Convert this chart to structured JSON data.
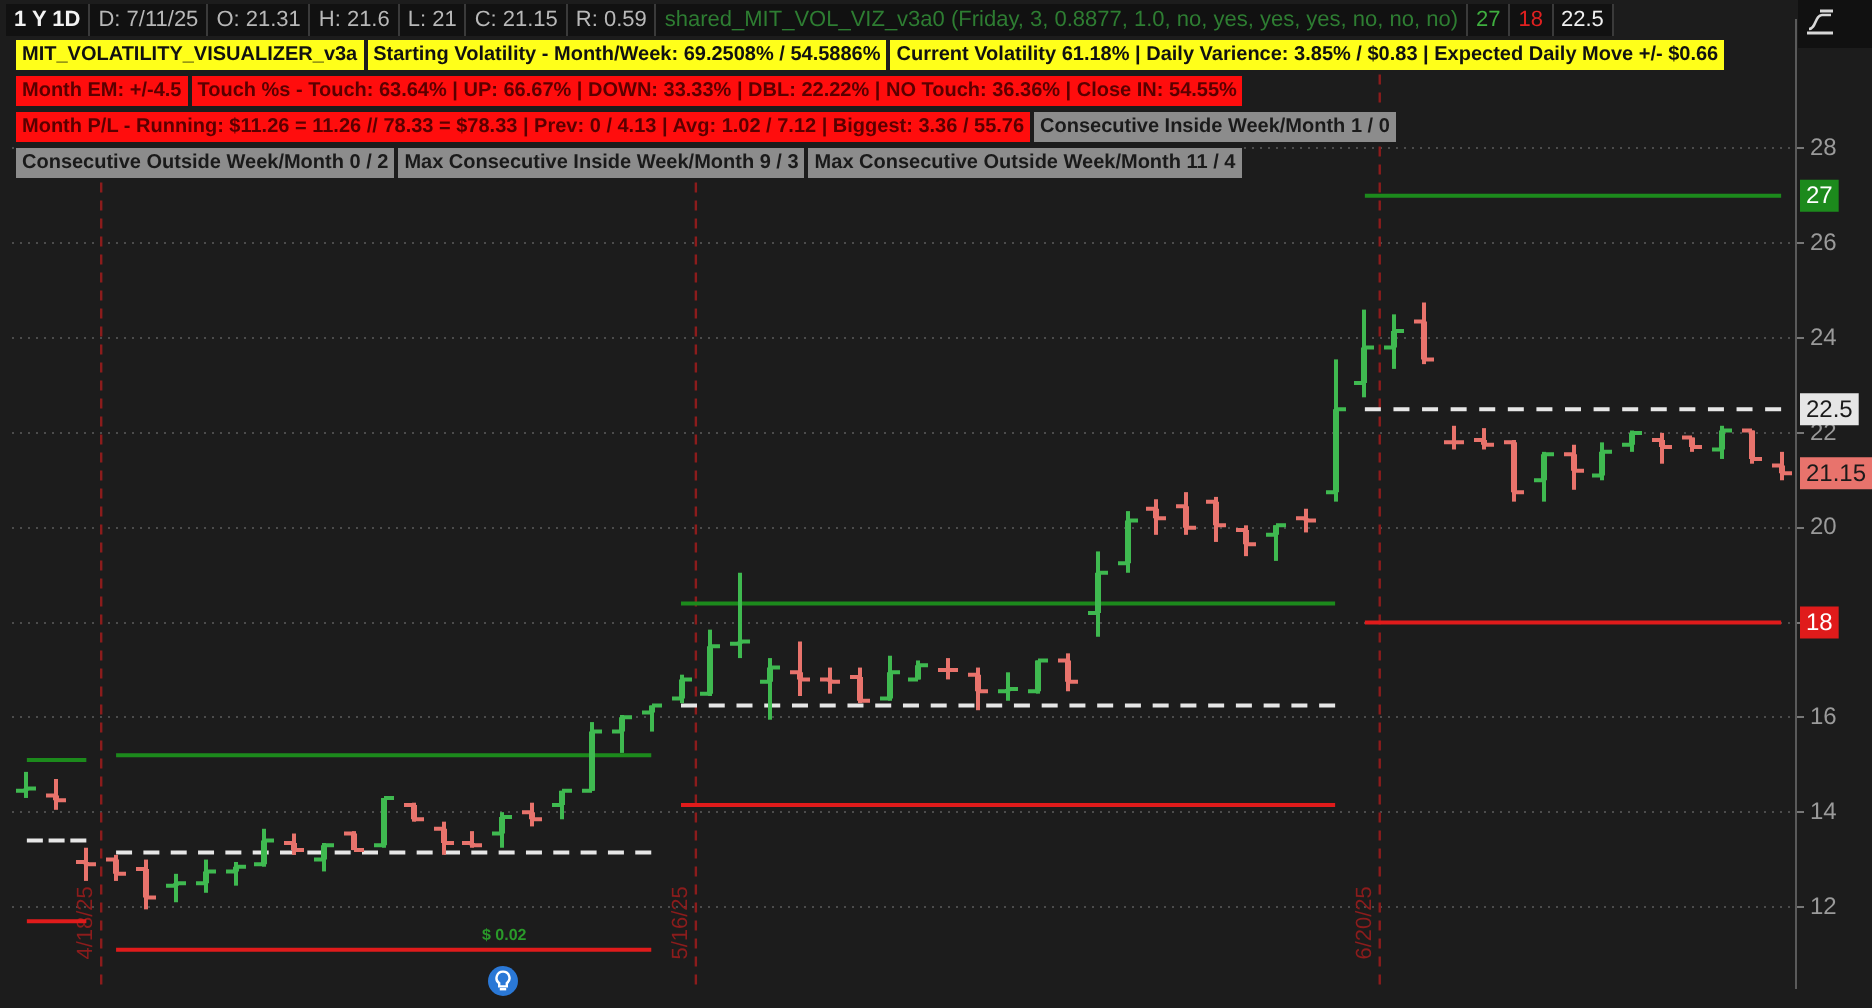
{
  "chart_data": {
    "type": "candlestick",
    "title": "1 Y 1D",
    "annotations": [
      "D: 7/11/25",
      "O: 21.31",
      "H: 21.6",
      "L: 21",
      "C: 21.15",
      "R: 0.59",
      "shared_MIT_VOL_VIZ_v3a0 (Friday, 3, 0.8877, 1.0, no, yes, yes, yes, no, no, no)",
      "27",
      "18",
      "22.5",
      "MIT_VOLATILITY_VISUALIZER_v3a",
      "Starting Volatility - Month/Week: 69.2508% / 54.5886%",
      "Current Volatility 61.18% | Daily Varience: 3.85% / $0.83 | Expected Daily Move +/- $0.66",
      "Month EM: +/-4.5",
      "Touch %s - Touch: 63.64% | UP: 66.67% | DOWN: 33.33% | DBL: 22.22% | NO Touch: 36.36% | Close IN: 54.55%",
      "Month P/L - Running: $11.26 = 11.26 // 78.33 = $78.33 | Prev: 0 / 4.13 | Avg: 1.02 / 7.12 | Biggest: 3.36 / 55.76",
      "Consecutive Inside Week/Month 1 / 0",
      "Consecutive Outside Week/Month 0 / 2",
      "Max Consecutive Inside Week/Month 9 / 3",
      "Max Consecutive Outside Week/Month 11 / 4",
      {
        "text": "21.15",
        "y": 21.15
      },
      "$ 0.02",
      "4/18/25",
      "5/16/25",
      "6/20/25"
    ],
    "categories": [
      null,
      null,
      null,
      null,
      null,
      null,
      null,
      null,
      null,
      null,
      null,
      null,
      null,
      null,
      null,
      null,
      null,
      null,
      null,
      null,
      null,
      null,
      null,
      null,
      null,
      null,
      null,
      null,
      null,
      null,
      null,
      null,
      null,
      null,
      null,
      null,
      null,
      null,
      null,
      null,
      null,
      null,
      null,
      null,
      null,
      null,
      null,
      null,
      null,
      null,
      null,
      null,
      null,
      null,
      null,
      null,
      null,
      null,
      null,
      null
    ],
    "ohlc": [
      [
        14.45,
        14.85,
        14.3,
        14.5
      ],
      [
        14.35,
        14.7,
        14.05,
        14.25
      ],
      [
        12.95,
        13.25,
        12.55,
        12.9
      ],
      [
        13.0,
        13.1,
        12.55,
        12.7
      ],
      [
        12.8,
        13.0,
        11.95,
        12.2
      ],
      [
        12.45,
        12.7,
        12.1,
        12.5
      ],
      [
        12.5,
        13.0,
        12.3,
        12.75
      ],
      [
        12.75,
        12.95,
        12.45,
        12.85
      ],
      [
        12.9,
        13.65,
        12.85,
        13.4
      ],
      [
        13.35,
        13.55,
        13.1,
        13.2
      ],
      [
        13.0,
        13.35,
        12.75,
        13.3
      ],
      [
        13.55,
        13.6,
        13.2,
        13.2
      ],
      [
        13.3,
        14.3,
        13.25,
        14.3
      ],
      [
        14.15,
        14.2,
        13.8,
        13.85
      ],
      [
        13.65,
        13.8,
        13.1,
        13.35
      ],
      [
        13.35,
        13.6,
        13.25,
        13.3
      ],
      [
        13.55,
        14.0,
        13.25,
        13.9
      ],
      [
        14.0,
        14.2,
        13.7,
        13.85
      ],
      [
        14.15,
        14.45,
        13.85,
        14.45
      ],
      [
        14.45,
        15.9,
        14.45,
        15.7
      ],
      [
        15.7,
        16.05,
        15.25,
        16.0
      ],
      [
        16.1,
        16.25,
        15.7,
        16.25
      ],
      [
        16.4,
        16.9,
        16.3,
        16.8
      ],
      [
        16.5,
        17.85,
        16.45,
        17.5
      ],
      [
        17.55,
        19.05,
        17.25,
        17.6
      ],
      [
        16.75,
        17.25,
        15.95,
        17.05
      ],
      [
        16.95,
        17.6,
        16.45,
        16.8
      ],
      [
        16.8,
        17.05,
        16.5,
        16.75
      ],
      [
        16.85,
        17.05,
        16.3,
        16.35
      ],
      [
        16.4,
        17.3,
        16.35,
        16.95
      ],
      [
        16.8,
        17.2,
        16.8,
        17.1
      ],
      [
        17.0,
        17.25,
        16.8,
        17.0
      ],
      [
        16.9,
        17.05,
        16.15,
        16.55
      ],
      [
        16.55,
        16.95,
        16.35,
        16.6
      ],
      [
        16.55,
        17.2,
        16.5,
        17.2
      ],
      [
        17.2,
        17.35,
        16.55,
        16.75
      ],
      [
        18.2,
        19.5,
        17.7,
        19.05
      ],
      [
        19.25,
        20.35,
        19.05,
        20.15
      ],
      [
        20.4,
        20.6,
        19.85,
        20.2
      ],
      [
        20.45,
        20.75,
        19.85,
        20.0
      ],
      [
        20.55,
        20.65,
        19.7,
        20.05
      ],
      [
        19.95,
        20.05,
        19.4,
        19.65
      ],
      [
        19.85,
        20.05,
        19.3,
        20.05
      ],
      [
        20.2,
        20.4,
        19.9,
        20.15
      ],
      [
        20.75,
        23.55,
        20.55,
        22.5
      ],
      [
        23.05,
        24.6,
        22.75,
        23.8
      ],
      [
        23.8,
        24.5,
        23.35,
        24.15
      ],
      [
        24.35,
        24.75,
        23.45,
        23.55
      ],
      [
        21.8,
        22.15,
        21.65,
        21.8
      ],
      [
        21.85,
        22.1,
        21.65,
        21.75
      ],
      [
        21.8,
        21.85,
        20.55,
        20.75
      ],
      [
        21.0,
        21.6,
        20.55,
        21.55
      ],
      [
        21.55,
        21.75,
        20.8,
        21.2
      ],
      [
        21.1,
        21.8,
        21.0,
        21.6
      ],
      [
        21.75,
        22.05,
        21.6,
        22.0
      ],
      [
        21.85,
        22.0,
        21.35,
        21.7
      ],
      [
        21.9,
        21.9,
        21.6,
        21.7
      ],
      [
        21.65,
        22.15,
        21.45,
        22.05
      ],
      [
        22.05,
        22.05,
        21.35,
        21.45
      ],
      [
        21.31,
        21.6,
        21,
        21.15
      ]
    ],
    "colors": [
      "#3fb950",
      "#e8736c",
      "#e8736c",
      "#e8736c",
      "#e8736c",
      "#3fb950",
      "#3fb950",
      "#3fb950",
      "#3fb950",
      "#e8736c",
      "#3fb950",
      "#e8736c",
      "#3fb950",
      "#e8736c",
      "#e8736c",
      "#e8736c",
      "#3fb950",
      "#e8736c",
      "#3fb950",
      "#3fb950",
      "#3fb950",
      "#3fb950",
      "#3fb950",
      "#3fb950",
      "#3fb950",
      "#3fb950",
      "#e8736c",
      "#e8736c",
      "#e8736c",
      "#3fb950",
      "#3fb950",
      "#e8736c",
      "#e8736c",
      "#3fb950",
      "#3fb950",
      "#e8736c",
      "#3fb950",
      "#3fb950",
      "#e8736c",
      "#e8736c",
      "#e8736c",
      "#e8736c",
      "#3fb950",
      "#e8736c",
      "#3fb950",
      "#3fb950",
      "#3fb950",
      "#e8736c",
      "#e8736c",
      "#e8736c",
      "#e8736c",
      "#3fb950",
      "#e8736c",
      "#3fb950",
      "#3fb950",
      "#e8736c",
      "#e8736c",
      "#3fb950",
      "#e8736c",
      "#e8736c"
    ],
    "series": [
      {
        "type": "line",
        "color": "#1c8a1c",
        "values": [
          15.1,
          15.1,
          15.1,
          null,
          null,
          null,
          null,
          null,
          null,
          null,
          null,
          null,
          null,
          null,
          null,
          null,
          null,
          null,
          null,
          null,
          null,
          null,
          null,
          null,
          null,
          null,
          null,
          null,
          null,
          null,
          null,
          null,
          null,
          null,
          null,
          null,
          null,
          null,
          null,
          null,
          null,
          null,
          null,
          null,
          null,
          null,
          null,
          null,
          null,
          null,
          null,
          null,
          null,
          null,
          null,
          null,
          null,
          null,
          null,
          null
        ]
      },
      {
        "type": "line",
        "color": "#1c8a1c",
        "values": [
          null,
          null,
          null,
          15.2,
          15.2,
          15.2,
          15.2,
          15.2,
          15.2,
          15.2,
          15.2,
          15.2,
          15.2,
          15.2,
          15.2,
          15.2,
          15.2,
          15.2,
          15.2,
          15.2,
          15.2,
          15.2,
          null,
          null,
          null,
          null,
          null,
          null,
          null,
          null,
          null,
          null,
          null,
          null,
          null,
          null,
          null,
          null,
          null,
          null,
          null,
          null,
          null,
          null,
          null,
          null,
          null,
          null,
          null,
          null,
          null,
          null,
          null,
          null,
          null,
          null,
          null,
          null,
          null,
          null
        ]
      },
      {
        "type": "line",
        "color": "#1c8a1c",
        "values": [
          null,
          null,
          null,
          null,
          null,
          null,
          null,
          null,
          null,
          null,
          null,
          null,
          null,
          null,
          null,
          null,
          null,
          null,
          null,
          null,
          null,
          null,
          18.4,
          18.4,
          18.4,
          18.4,
          18.4,
          18.4,
          18.4,
          18.4,
          18.4,
          18.4,
          18.4,
          18.4,
          18.4,
          18.4,
          18.4,
          18.4,
          18.4,
          18.4,
          18.4,
          18.4,
          18.4,
          18.4,
          18.4,
          null,
          null,
          null,
          null,
          null,
          null,
          null,
          null,
          null,
          null,
          null,
          null,
          null,
          null,
          null
        ]
      },
      {
        "type": "line",
        "color": "#1c8a1c",
        "values": [
          null,
          null,
          null,
          null,
          null,
          null,
          null,
          null,
          null,
          null,
          null,
          null,
          null,
          null,
          null,
          null,
          null,
          null,
          null,
          null,
          null,
          null,
          null,
          null,
          null,
          null,
          null,
          null,
          null,
          null,
          null,
          null,
          null,
          null,
          null,
          null,
          null,
          null,
          null,
          null,
          null,
          null,
          null,
          null,
          null,
          27,
          27,
          27,
          27,
          27,
          27,
          27,
          27,
          27,
          27,
          27,
          27,
          27,
          27,
          27
        ],
        "value_labels": [
          null,
          null,
          null,
          null,
          null,
          null,
          null,
          null,
          null,
          null,
          null,
          null,
          null,
          null,
          null,
          null,
          null,
          null,
          null,
          null,
          null,
          null,
          null,
          null,
          null,
          null,
          null,
          null,
          null,
          null,
          null,
          null,
          null,
          null,
          null,
          null,
          null,
          null,
          null,
          null,
          null,
          null,
          null,
          null,
          null,
          null,
          null,
          null,
          null,
          null,
          null,
          null,
          null,
          null,
          null,
          null,
          null,
          null,
          null,
          "27"
        ]
      },
      {
        "type": "line",
        "color": "#e6e6e6",
        "line_style": "dashed",
        "values": [
          13.4,
          13.4,
          13.4,
          null,
          null,
          null,
          null,
          null,
          null,
          null,
          null,
          null,
          null,
          null,
          null,
          null,
          null,
          null,
          null,
          null,
          null,
          null,
          null,
          null,
          null,
          null,
          null,
          null,
          null,
          null,
          null,
          null,
          null,
          null,
          null,
          null,
          null,
          null,
          null,
          null,
          null,
          null,
          null,
          null,
          null,
          null,
          null,
          null,
          null,
          null,
          null,
          null,
          null,
          null,
          null,
          null,
          null,
          null,
          null,
          null
        ]
      },
      {
        "type": "line",
        "color": "#e6e6e6",
        "line_style": "dashed",
        "values": [
          null,
          null,
          null,
          13.15,
          13.15,
          13.15,
          13.15,
          13.15,
          13.15,
          13.15,
          13.15,
          13.15,
          13.15,
          13.15,
          13.15,
          13.15,
          13.15,
          13.15,
          13.15,
          13.15,
          13.15,
          13.15,
          null,
          null,
          null,
          null,
          null,
          null,
          null,
          null,
          null,
          null,
          null,
          null,
          null,
          null,
          null,
          null,
          null,
          null,
          null,
          null,
          null,
          null,
          null,
          null,
          null,
          null,
          null,
          null,
          null,
          null,
          null,
          null,
          null,
          null,
          null,
          null,
          null,
          null
        ]
      },
      {
        "type": "line",
        "color": "#e6e6e6",
        "line_style": "dashed",
        "values": [
          null,
          null,
          null,
          null,
          null,
          null,
          null,
          null,
          null,
          null,
          null,
          null,
          null,
          null,
          null,
          null,
          null,
          null,
          null,
          null,
          null,
          null,
          16.25,
          16.25,
          16.25,
          16.25,
          16.25,
          16.25,
          16.25,
          16.25,
          16.25,
          16.25,
          16.25,
          16.25,
          16.25,
          16.25,
          16.25,
          16.25,
          16.25,
          16.25,
          16.25,
          16.25,
          16.25,
          16.25,
          16.25,
          null,
          null,
          null,
          null,
          null,
          null,
          null,
          null,
          null,
          null,
          null,
          null,
          null,
          null,
          null
        ]
      },
      {
        "type": "line",
        "color": "#e6e6e6",
        "line_style": "dashed",
        "values": [
          null,
          null,
          null,
          null,
          null,
          null,
          null,
          null,
          null,
          null,
          null,
          null,
          null,
          null,
          null,
          null,
          null,
          null,
          null,
          null,
          null,
          null,
          null,
          null,
          null,
          null,
          null,
          null,
          null,
          null,
          null,
          null,
          null,
          null,
          null,
          null,
          null,
          null,
          null,
          null,
          null,
          null,
          null,
          null,
          null,
          22.5,
          22.5,
          22.5,
          22.5,
          22.5,
          22.5,
          22.5,
          22.5,
          22.5,
          22.5,
          22.5,
          22.5,
          22.5,
          22.5,
          22.5
        ],
        "value_labels": [
          null,
          null,
          null,
          null,
          null,
          null,
          null,
          null,
          null,
          null,
          null,
          null,
          null,
          null,
          null,
          null,
          null,
          null,
          null,
          null,
          null,
          null,
          null,
          null,
          null,
          null,
          null,
          null,
          null,
          null,
          null,
          null,
          null,
          null,
          null,
          null,
          null,
          null,
          null,
          null,
          null,
          null,
          null,
          null,
          null,
          null,
          null,
          null,
          null,
          null,
          null,
          null,
          null,
          null,
          null,
          null,
          null,
          null,
          null,
          "22.5"
        ]
      },
      {
        "type": "line",
        "color": "#e01b1b",
        "values": [
          11.7,
          11.7,
          11.7,
          null,
          null,
          null,
          null,
          null,
          null,
          null,
          null,
          null,
          null,
          null,
          null,
          null,
          null,
          null,
          null,
          null,
          null,
          null,
          null,
          null,
          null,
          null,
          null,
          null,
          null,
          null,
          null,
          null,
          null,
          null,
          null,
          null,
          null,
          null,
          null,
          null,
          null,
          null,
          null,
          null,
          null,
          null,
          null,
          null,
          null,
          null,
          null,
          null,
          null,
          null,
          null,
          null,
          null,
          null,
          null,
          null
        ]
      },
      {
        "type": "line",
        "color": "#e01b1b",
        "values": [
          null,
          null,
          null,
          11.1,
          11.1,
          11.1,
          11.1,
          11.1,
          11.1,
          11.1,
          11.1,
          11.1,
          11.1,
          11.1,
          11.1,
          11.1,
          11.1,
          11.1,
          11.1,
          11.1,
          11.1,
          11.1,
          null,
          null,
          null,
          null,
          null,
          null,
          null,
          null,
          null,
          null,
          null,
          null,
          null,
          null,
          null,
          null,
          null,
          null,
          null,
          null,
          null,
          null,
          null,
          null,
          null,
          null,
          null,
          null,
          null,
          null,
          null,
          null,
          null,
          null,
          null,
          null,
          null,
          null
        ]
      },
      {
        "type": "line",
        "color": "#e01b1b",
        "values": [
          null,
          null,
          null,
          null,
          null,
          null,
          null,
          null,
          null,
          null,
          null,
          null,
          null,
          null,
          null,
          null,
          null,
          null,
          null,
          null,
          null,
          null,
          14.15,
          14.15,
          14.15,
          14.15,
          14.15,
          14.15,
          14.15,
          14.15,
          14.15,
          14.15,
          14.15,
          14.15,
          14.15,
          14.15,
          14.15,
          14.15,
          14.15,
          14.15,
          14.15,
          14.15,
          14.15,
          14.15,
          14.15,
          null,
          null,
          null,
          null,
          null,
          null,
          null,
          null,
          null,
          null,
          null,
          null,
          null,
          null,
          null
        ]
      },
      {
        "type": "line",
        "color": "#e01b1b",
        "values": [
          null,
          null,
          null,
          null,
          null,
          null,
          null,
          null,
          null,
          null,
          null,
          null,
          null,
          null,
          null,
          null,
          null,
          null,
          null,
          null,
          null,
          null,
          null,
          null,
          null,
          null,
          null,
          null,
          null,
          null,
          null,
          null,
          null,
          null,
          null,
          null,
          null,
          null,
          null,
          null,
          null,
          null,
          null,
          null,
          null,
          18,
          18,
          18,
          18,
          18,
          18,
          18,
          18,
          18,
          18,
          18,
          18,
          18,
          18,
          18
        ],
        "value_labels": [
          null,
          null,
          null,
          null,
          null,
          null,
          null,
          null,
          null,
          null,
          null,
          null,
          null,
          null,
          null,
          null,
          null,
          null,
          null,
          null,
          null,
          null,
          null,
          null,
          null,
          null,
          null,
          null,
          null,
          null,
          null,
          null,
          null,
          null,
          null,
          null,
          null,
          null,
          null,
          null,
          null,
          null,
          null,
          null,
          null,
          null,
          null,
          null,
          null,
          null,
          null,
          null,
          null,
          null,
          null,
          null,
          null,
          null,
          null,
          "18"
        ]
      }
    ],
    "ylim": [
      10.3,
      30.7
    ],
    "yticks": [
      12,
      14,
      16,
      {
        "value": 18,
        "label": null
      },
      20,
      22,
      24,
      26,
      28
    ],
    "grid": "y",
    "legend": false,
    "marker": "none"
  }
}
